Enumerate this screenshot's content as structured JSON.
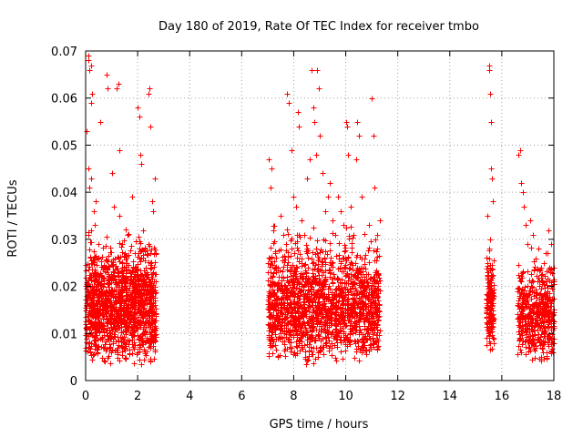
{
  "chart_data": {
    "type": "scatter",
    "title": "Day 180 of 2019, Rate Of TEC Index for receiver tmbo",
    "xlabel": "GPS time / hours",
    "ylabel": "ROTI / TECUs",
    "xlim": [
      0,
      18
    ],
    "ylim": [
      0,
      0.07
    ],
    "xticks": [
      "0",
      "2",
      "4",
      "6",
      "8",
      "10",
      "12",
      "14",
      "16",
      "18"
    ],
    "yticks": [
      "0",
      "0.01",
      "0.02",
      "0.03",
      "0.04",
      "0.05",
      "0.06",
      "0.07"
    ],
    "grid": true,
    "marker": "+",
    "color": "#ff0000",
    "series": [
      {
        "name": "ROTI",
        "points": [
          [
            0.05,
            0.053
          ],
          [
            0.1,
            0.068
          ],
          [
            0.12,
            0.069
          ],
          [
            0.15,
            0.066
          ],
          [
            0.2,
            0.067
          ],
          [
            0.2,
            0.059
          ],
          [
            0.25,
            0.061
          ],
          [
            0.1,
            0.045
          ],
          [
            0.15,
            0.041
          ],
          [
            0.2,
            0.043
          ],
          [
            0.3,
            0.036
          ],
          [
            0.35,
            0.033
          ],
          [
            0.4,
            0.038
          ],
          [
            0.5,
            0.029
          ],
          [
            0.55,
            0.055
          ],
          [
            0.6,
            0.021
          ],
          [
            0.7,
            0.024
          ],
          [
            0.8,
            0.065
          ],
          [
            0.85,
            0.062
          ],
          [
            0.9,
            0.019
          ],
          [
            1.0,
            0.044
          ],
          [
            1.1,
            0.037
          ],
          [
            1.2,
            0.062
          ],
          [
            1.25,
            0.063
          ],
          [
            1.3,
            0.035
          ],
          [
            1.3,
            0.049
          ],
          [
            1.4,
            0.029
          ],
          [
            1.5,
            0.027
          ],
          [
            1.6,
            0.018
          ],
          [
            1.7,
            0.022
          ],
          [
            1.8,
            0.039
          ],
          [
            1.9,
            0.024
          ],
          [
            2.0,
            0.058
          ],
          [
            2.05,
            0.056
          ],
          [
            2.1,
            0.048
          ],
          [
            2.15,
            0.046
          ],
          [
            2.2,
            0.032
          ],
          [
            2.3,
            0.019
          ],
          [
            2.4,
            0.061
          ],
          [
            2.45,
            0.062
          ],
          [
            2.5,
            0.054
          ],
          [
            2.55,
            0.038
          ],
          [
            2.6,
            0.036
          ],
          [
            2.65,
            0.043
          ],
          [
            2.7,
            0.021
          ],
          [
            7.05,
            0.047
          ],
          [
            7.1,
            0.041
          ],
          [
            7.15,
            0.045
          ],
          [
            7.2,
            0.032
          ],
          [
            7.3,
            0.027
          ],
          [
            7.4,
            0.024
          ],
          [
            7.5,
            0.035
          ],
          [
            7.6,
            0.031
          ],
          [
            7.7,
            0.029
          ],
          [
            7.75,
            0.061
          ],
          [
            7.8,
            0.059
          ],
          [
            7.9,
            0.049
          ],
          [
            8.0,
            0.039
          ],
          [
            8.1,
            0.037
          ],
          [
            8.15,
            0.057
          ],
          [
            8.2,
            0.054
          ],
          [
            8.3,
            0.034
          ],
          [
            8.4,
            0.031
          ],
          [
            8.5,
            0.043
          ],
          [
            8.6,
            0.047
          ],
          [
            8.7,
            0.066
          ],
          [
            8.75,
            0.058
          ],
          [
            8.8,
            0.055
          ],
          [
            8.85,
            0.048
          ],
          [
            8.9,
            0.066
          ],
          [
            8.95,
            0.062
          ],
          [
            9.0,
            0.052
          ],
          [
            9.1,
            0.044
          ],
          [
            9.2,
            0.036
          ],
          [
            9.3,
            0.039
          ],
          [
            9.4,
            0.042
          ],
          [
            9.5,
            0.034
          ],
          [
            9.6,
            0.031
          ],
          [
            9.7,
            0.039
          ],
          [
            9.8,
            0.036
          ],
          [
            9.9,
            0.033
          ],
          [
            10.0,
            0.055
          ],
          [
            10.05,
            0.054
          ],
          [
            10.1,
            0.048
          ],
          [
            10.2,
            0.037
          ],
          [
            10.3,
            0.031
          ],
          [
            10.4,
            0.047
          ],
          [
            10.45,
            0.055
          ],
          [
            10.5,
            0.052
          ],
          [
            10.6,
            0.039
          ],
          [
            10.7,
            0.026
          ],
          [
            10.8,
            0.021
          ],
          [
            10.9,
            0.033
          ],
          [
            11.0,
            0.06
          ],
          [
            11.05,
            0.052
          ],
          [
            11.1,
            0.041
          ],
          [
            11.2,
            0.031
          ],
          [
            11.3,
            0.034
          ],
          [
            15.5,
            0.067
          ],
          [
            15.52,
            0.066
          ],
          [
            15.55,
            0.061
          ],
          [
            15.58,
            0.055
          ],
          [
            15.6,
            0.045
          ],
          [
            15.62,
            0.043
          ],
          [
            15.65,
            0.038
          ],
          [
            15.45,
            0.035
          ],
          [
            15.5,
            0.028
          ],
          [
            15.55,
            0.024
          ],
          [
            15.6,
            0.017
          ],
          [
            15.65,
            0.013
          ],
          [
            16.65,
            0.048
          ],
          [
            16.7,
            0.049
          ],
          [
            16.75,
            0.042
          ],
          [
            16.8,
            0.04
          ],
          [
            16.85,
            0.037
          ],
          [
            16.9,
            0.033
          ],
          [
            17.0,
            0.029
          ],
          [
            17.1,
            0.034
          ],
          [
            17.2,
            0.031
          ],
          [
            17.3,
            0.026
          ],
          [
            17.4,
            0.028
          ],
          [
            17.5,
            0.024
          ],
          [
            17.6,
            0.025
          ],
          [
            17.7,
            0.027
          ],
          [
            17.8,
            0.032
          ],
          [
            17.9,
            0.029
          ]
        ]
      }
    ],
    "dense_clusters": [
      {
        "x": [
          0.0,
          2.7
        ],
        "y": [
          0.003,
          0.035
        ],
        "count": 1400
      },
      {
        "x": [
          7.0,
          11.3
        ],
        "y": [
          0.003,
          0.035
        ],
        "count": 1700
      },
      {
        "x": [
          15.4,
          15.7
        ],
        "y": [
          0.004,
          0.035
        ],
        "count": 160
      },
      {
        "x": [
          16.6,
          18.0
        ],
        "y": [
          0.003,
          0.03
        ],
        "count": 500
      }
    ]
  }
}
